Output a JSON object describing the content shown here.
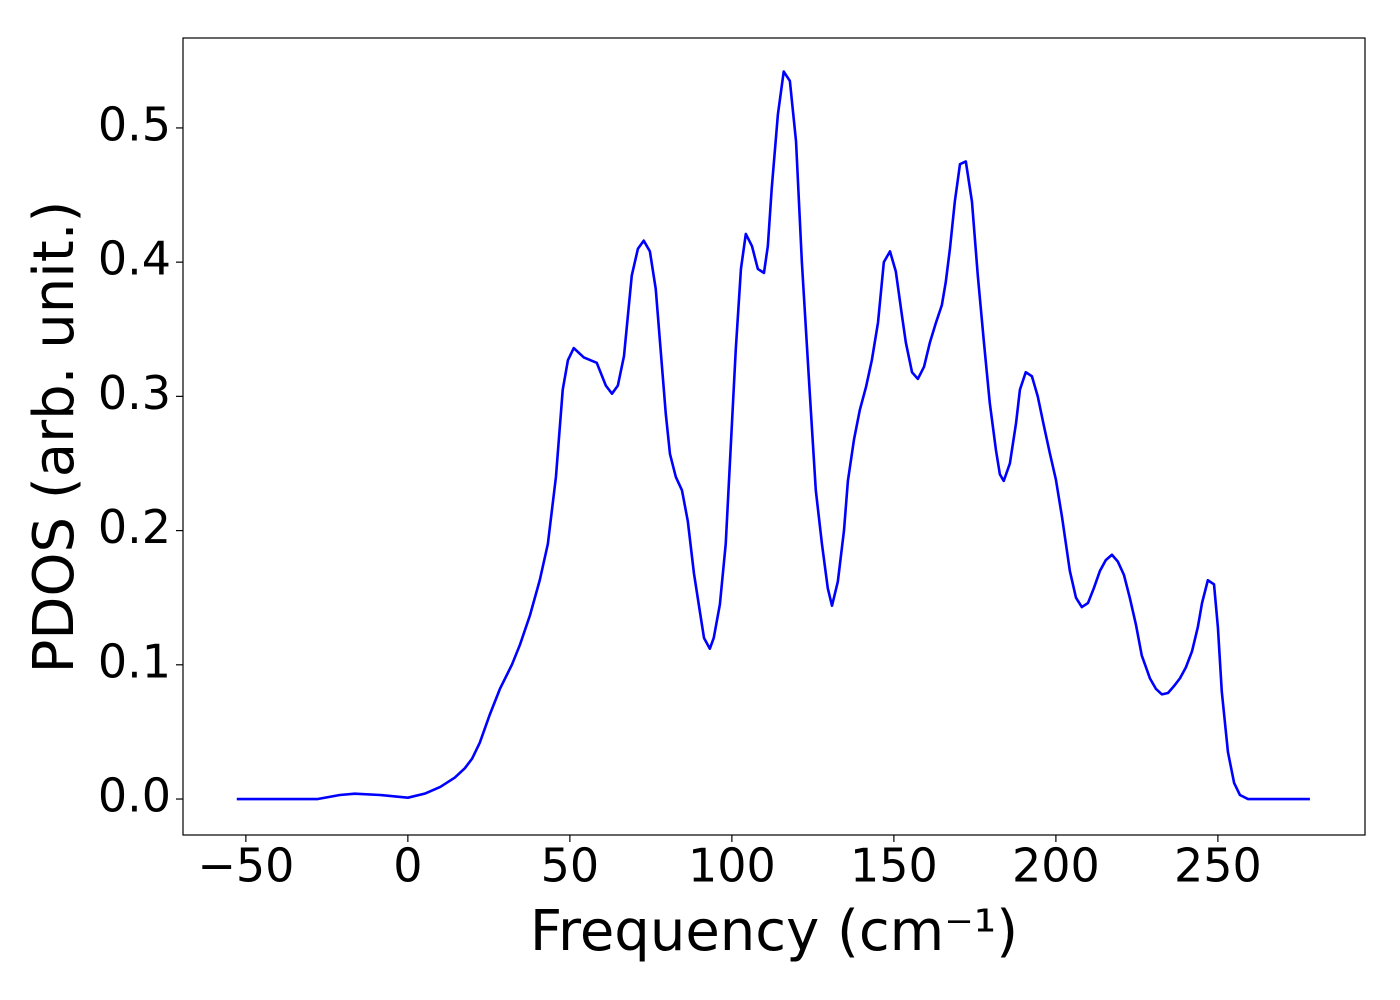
{
  "chart_data": {
    "type": "line",
    "xlabel": "Frequency (cm⁻¹)",
    "ylabel": "PDOS (arb. unit.)",
    "xlim": [
      -69.4,
      295.4
    ],
    "ylim": [
      -0.0268,
      0.567
    ],
    "xticks": [
      {
        "value": -50,
        "label": "−50"
      },
      0,
      50,
      100,
      150,
      200,
      250
    ],
    "yticks": [
      {
        "value": 0,
        "label": "0.0"
      },
      0.1,
      0.2,
      0.3,
      0.4,
      0.5
    ],
    "grid": false,
    "series": [
      {
        "color": "#0000ff",
        "x": [
          -52.8,
          -33,
          -27.8,
          -21,
          -16.4,
          -8.6,
          0,
          5.2,
          10,
          14.5,
          17.6,
          19.8,
          22.2,
          25.3,
          28.4,
          32.1,
          34.6,
          37.7,
          40.7,
          43.2,
          45.7,
          47.8,
          49.4,
          51.2,
          54.3,
          58.3,
          61.1,
          63,
          64.8,
          66.7,
          69.1,
          71,
          72.8,
          74.7,
          76.5,
          79.6,
          80.9,
          82.7,
          84.6,
          86.4,
          88.3,
          90.1,
          91.4,
          93.2,
          94.4,
          96.3,
          98.1,
          101.2,
          102.8,
          104.3,
          106.2,
          108,
          109.9,
          111.1,
          112.3,
          114.2,
          116,
          117.9,
          119.8,
          121.6,
          124.1,
          125.9,
          127.8,
          129.6,
          130.9,
          132.7,
          134.6,
          135.8,
          137.7,
          139.5,
          141.4,
          143.2,
          145.1,
          146.9,
          148.8,
          150.6,
          152.5,
          153.7,
          155.6,
          157.4,
          159.3,
          161.1,
          163,
          164.8,
          166,
          167.3,
          168.8,
          170.4,
          172.2,
          174.1,
          175.9,
          177.8,
          179.6,
          181.5,
          182.7,
          183.9,
          185.8,
          187.7,
          188.9,
          190.7,
          192.6,
          194.4,
          196.3,
          198.1,
          200,
          201.9,
          204.3,
          206.2,
          208,
          209.9,
          211.7,
          213.6,
          215.4,
          217.3,
          219.1,
          221,
          222.8,
          224.7,
          226.5,
          229,
          230.9,
          232.7,
          234.6,
          236.4,
          238.3,
          240.1,
          242,
          243.8,
          245.1,
          246.9,
          248.8,
          250,
          251.2,
          253.1,
          255,
          256.8,
          259.3,
          278.4
        ],
        "values": [
          0,
          0,
          0,
          0.003,
          0.004,
          0.003,
          0.001,
          0.004,
          0.009,
          0.016,
          0.023,
          0.03,
          0.042,
          0.063,
          0.082,
          0.1,
          0.115,
          0.137,
          0.163,
          0.19,
          0.24,
          0.305,
          0.327,
          0.336,
          0.329,
          0.325,
          0.308,
          0.302,
          0.308,
          0.33,
          0.39,
          0.41,
          0.416,
          0.408,
          0.38,
          0.287,
          0.257,
          0.24,
          0.23,
          0.207,
          0.168,
          0.14,
          0.12,
          0.112,
          0.12,
          0.145,
          0.19,
          0.335,
          0.395,
          0.421,
          0.412,
          0.395,
          0.392,
          0.412,
          0.455,
          0.51,
          0.542,
          0.535,
          0.49,
          0.4,
          0.3,
          0.23,
          0.19,
          0.157,
          0.144,
          0.162,
          0.2,
          0.237,
          0.268,
          0.29,
          0.307,
          0.327,
          0.355,
          0.4,
          0.408,
          0.393,
          0.36,
          0.34,
          0.318,
          0.313,
          0.322,
          0.34,
          0.355,
          0.368,
          0.385,
          0.41,
          0.445,
          0.473,
          0.475,
          0.445,
          0.39,
          0.34,
          0.295,
          0.26,
          0.242,
          0.237,
          0.25,
          0.28,
          0.305,
          0.318,
          0.315,
          0.3,
          0.278,
          0.258,
          0.238,
          0.21,
          0.17,
          0.15,
          0.143,
          0.146,
          0.157,
          0.17,
          0.178,
          0.182,
          0.177,
          0.167,
          0.15,
          0.13,
          0.107,
          0.09,
          0.082,
          0.078,
          0.079,
          0.084,
          0.09,
          0.098,
          0.11,
          0.128,
          0.146,
          0.163,
          0.16,
          0.128,
          0.08,
          0.035,
          0.012,
          0.003,
          0,
          0
        ]
      }
    ]
  }
}
